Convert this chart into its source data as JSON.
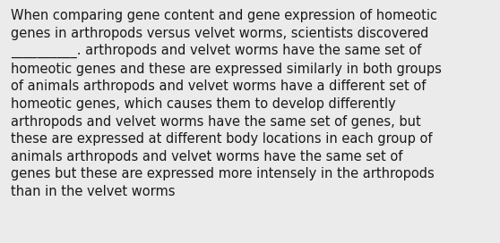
{
  "background_color": "#ebebeb",
  "text_color": "#1a1a1a",
  "font_size": 10.5,
  "lines": [
    "When comparing gene content and gene expression of homeotic",
    "genes in arthropods versus velvet worms, scientists discovered",
    "__________. arthropods and velvet worms have the same set of",
    "homeotic genes and these are expressed similarly in both groups",
    "of animals arthropods and velvet worms have a different set of",
    "homeotic genes, which causes them to develop differently",
    "arthropods and velvet worms have the same set of genes, but",
    "these are expressed at different body locations in each group of",
    "animals arthropods and velvet worms have the same set of",
    "genes but these are expressed more intensely in the arthropods",
    "than in the velvet worms"
  ]
}
